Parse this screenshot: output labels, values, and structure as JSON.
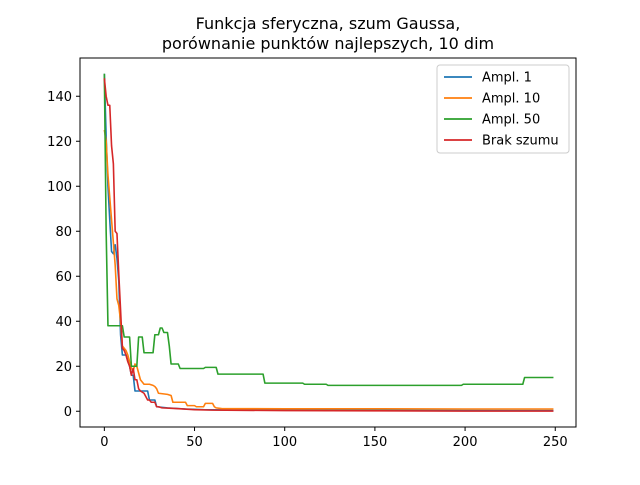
{
  "chart_data": {
    "type": "line",
    "title_lines": [
      "Funkcja sferyczna, szum Gaussa,",
      "porównanie punktów najlepszych, 10 dim"
    ],
    "xlabel": "",
    "ylabel": "",
    "xlim": [
      -13.5,
      261.5
    ],
    "ylim": [
      -7,
      157
    ],
    "xticks": [
      0,
      50,
      100,
      150,
      200,
      250
    ],
    "yticks": [
      0,
      20,
      40,
      60,
      80,
      100,
      120,
      140
    ],
    "grid": false,
    "legend_position": "top-right",
    "series": [
      {
        "name": "Ampl. 1",
        "color": "#1f77b4",
        "points": [
          [
            0,
            150
          ],
          [
            1,
            122
          ],
          [
            2,
            100
          ],
          [
            3,
            85
          ],
          [
            4,
            71
          ],
          [
            5,
            70
          ],
          [
            6,
            74
          ],
          [
            7,
            68
          ],
          [
            8,
            58
          ],
          [
            9,
            34
          ],
          [
            10,
            25
          ],
          [
            12,
            25
          ],
          [
            14,
            20
          ],
          [
            15,
            16
          ],
          [
            16,
            16
          ],
          [
            17,
            9
          ],
          [
            24,
            9
          ],
          [
            25,
            5
          ],
          [
            28,
            5
          ],
          [
            29,
            2
          ],
          [
            35,
            1.5
          ],
          [
            45,
            1
          ],
          [
            55,
            0.7
          ],
          [
            65,
            0.6
          ],
          [
            100,
            0.5
          ],
          [
            150,
            0.4
          ],
          [
            249,
            0.3
          ]
        ]
      },
      {
        "name": "Ampl. 10",
        "color": "#ff7f0e",
        "points": [
          [
            0,
            125
          ],
          [
            1,
            120
          ],
          [
            2,
            105
          ],
          [
            3,
            95
          ],
          [
            4,
            85
          ],
          [
            5,
            75
          ],
          [
            6,
            65
          ],
          [
            7,
            50
          ],
          [
            8,
            47
          ],
          [
            9,
            40
          ],
          [
            10,
            29
          ],
          [
            11,
            28
          ],
          [
            12,
            27
          ],
          [
            13,
            25
          ],
          [
            14,
            22
          ],
          [
            15,
            19
          ],
          [
            16,
            18
          ],
          [
            17,
            21
          ],
          [
            18,
            20
          ],
          [
            19,
            17
          ],
          [
            20,
            14
          ],
          [
            22,
            12
          ],
          [
            25,
            12
          ],
          [
            27,
            11.5
          ],
          [
            28,
            11
          ],
          [
            29,
            10
          ],
          [
            30,
            8
          ],
          [
            35,
            7.5
          ],
          [
            37,
            7
          ],
          [
            38,
            4
          ],
          [
            45,
            4
          ],
          [
            46,
            2.5
          ],
          [
            50,
            2.5
          ],
          [
            51,
            2
          ],
          [
            55,
            2
          ],
          [
            56,
            3.5
          ],
          [
            60,
            3.5
          ],
          [
            61,
            2
          ],
          [
            62,
            1.5
          ],
          [
            65,
            1.2
          ],
          [
            100,
            1.1
          ],
          [
            150,
            1.1
          ],
          [
            200,
            1
          ],
          [
            249,
            1
          ]
        ]
      },
      {
        "name": "Ampl. 50",
        "color": "#2ca02c",
        "points": [
          [
            0,
            150
          ],
          [
            1,
            80
          ],
          [
            2,
            38
          ],
          [
            10,
            38
          ],
          [
            11,
            33
          ],
          [
            14,
            33
          ],
          [
            15,
            20
          ],
          [
            18,
            20
          ],
          [
            19,
            33
          ],
          [
            21,
            33
          ],
          [
            22,
            26
          ],
          [
            27,
            26
          ],
          [
            28,
            34
          ],
          [
            30,
            34
          ],
          [
            31,
            37
          ],
          [
            32,
            37
          ],
          [
            33,
            35
          ],
          [
            35,
            35
          ],
          [
            36,
            29
          ],
          [
            37,
            21
          ],
          [
            41,
            21
          ],
          [
            42,
            19
          ],
          [
            55,
            19
          ],
          [
            56,
            19.5
          ],
          [
            62,
            19.5
          ],
          [
            63,
            16.5
          ],
          [
            88,
            16.5
          ],
          [
            89,
            12.5
          ],
          [
            110,
            12.5
          ],
          [
            111,
            12
          ],
          [
            123,
            12
          ],
          [
            124,
            11.5
          ],
          [
            198,
            11.5
          ],
          [
            199,
            12
          ],
          [
            232,
            12
          ],
          [
            233,
            15
          ],
          [
            249,
            15
          ]
        ]
      },
      {
        "name": "Brak szumu",
        "color": "#d62728",
        "points": [
          [
            0,
            148
          ],
          [
            1,
            140
          ],
          [
            2,
            136
          ],
          [
            3,
            136
          ],
          [
            4,
            118
          ],
          [
            5,
            110
          ],
          [
            6,
            80
          ],
          [
            7,
            79
          ],
          [
            8,
            61
          ],
          [
            9,
            45
          ],
          [
            10,
            28
          ],
          [
            11,
            27
          ],
          [
            12,
            25
          ],
          [
            13,
            22
          ],
          [
            14,
            20
          ],
          [
            15,
            16
          ],
          [
            16,
            19
          ],
          [
            17,
            14
          ],
          [
            18,
            14
          ],
          [
            19,
            10
          ],
          [
            20,
            9
          ],
          [
            22,
            8
          ],
          [
            24,
            5
          ],
          [
            25,
            5
          ],
          [
            26,
            4
          ],
          [
            28,
            4
          ],
          [
            29,
            2
          ],
          [
            30,
            2
          ],
          [
            32,
            1.5
          ],
          [
            40,
            1.2
          ],
          [
            50,
            0.7
          ],
          [
            60,
            0.5
          ],
          [
            100,
            0.3
          ],
          [
            150,
            0.2
          ],
          [
            200,
            0.1
          ],
          [
            249,
            0.1
          ]
        ]
      }
    ]
  }
}
